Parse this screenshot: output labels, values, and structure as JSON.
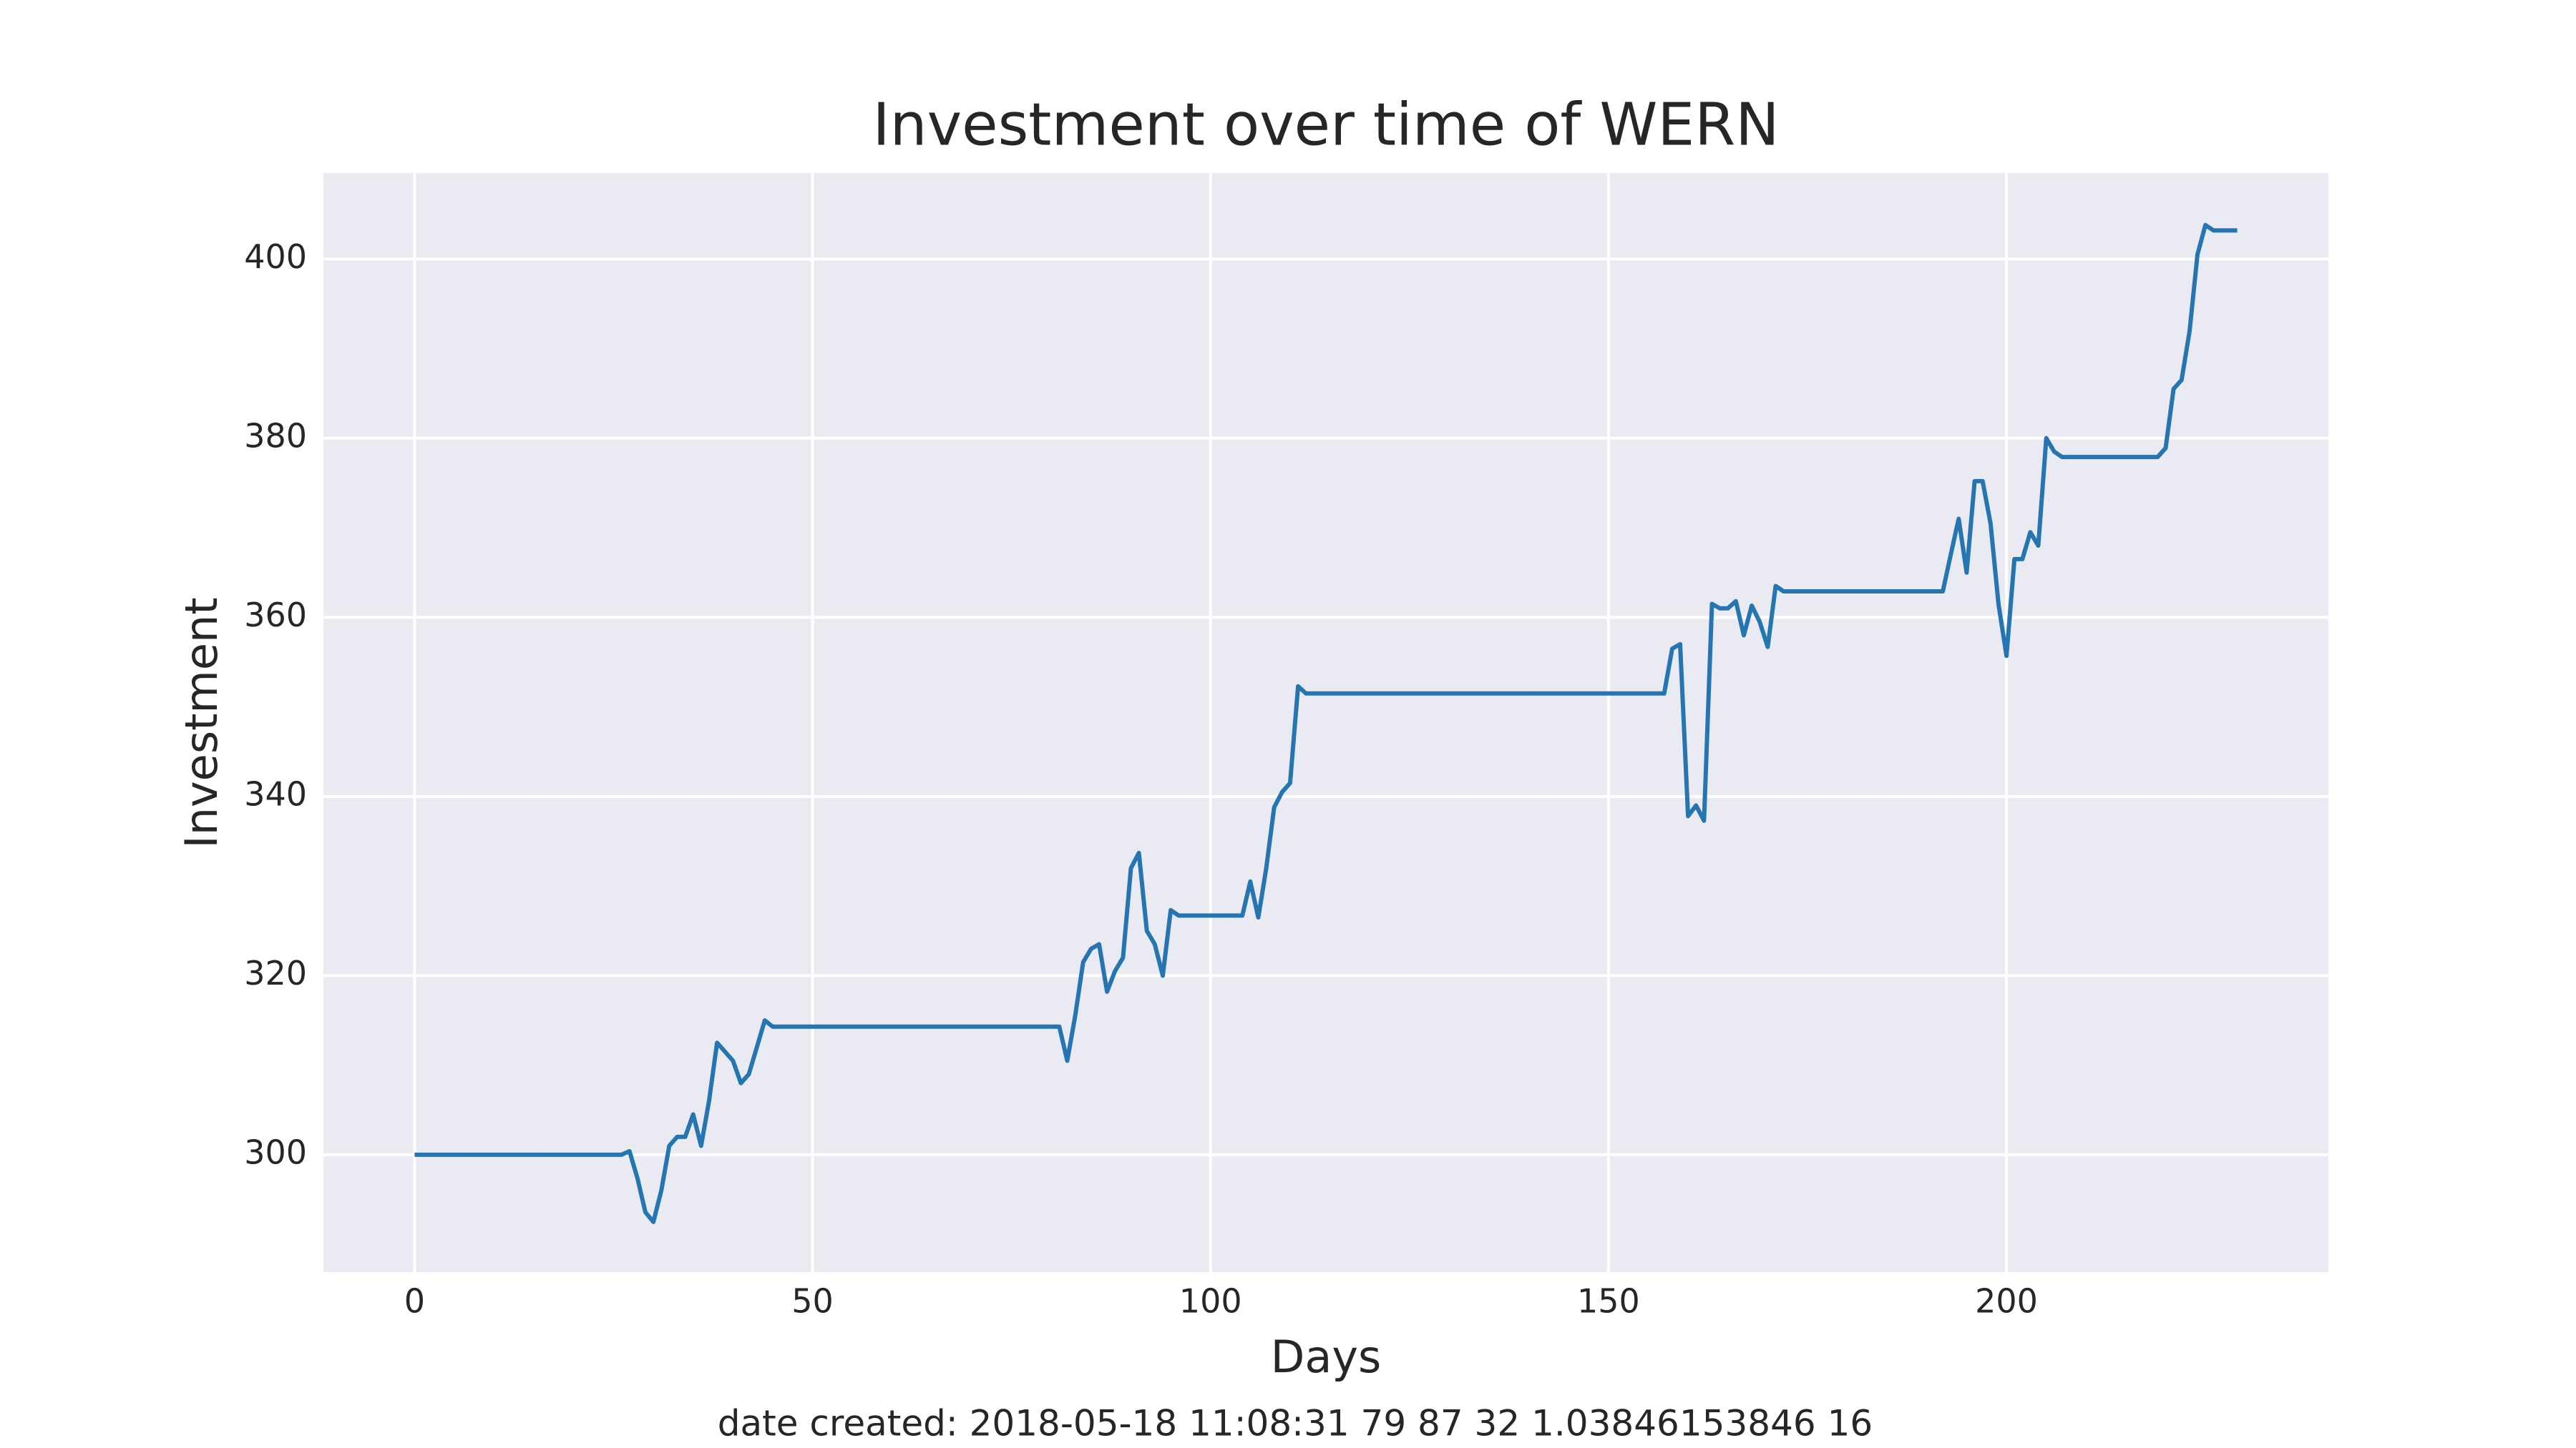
{
  "chart_data": {
    "type": "line",
    "title": "Investment over time of WERN",
    "xlabel": "Days",
    "ylabel": "Investment",
    "footer": "date created: 2018-05-18 11:08:31 79 87 32 1.03846153846 16",
    "x": [
      0,
      26,
      27,
      28,
      29,
      30,
      31,
      32,
      33,
      34,
      35,
      36,
      37,
      38,
      39,
      40,
      41,
      42,
      43,
      44,
      45,
      81,
      82,
      83,
      84,
      85,
      86,
      87,
      88,
      89,
      90,
      91,
      92,
      93,
      94,
      95,
      96,
      104,
      105,
      106,
      107,
      108,
      109,
      110,
      111,
      112,
      157,
      158,
      159,
      160,
      161,
      162,
      163,
      164,
      165,
      166,
      167,
      168,
      169,
      170,
      171,
      172,
      192,
      193,
      194,
      195,
      196,
      197,
      198,
      199,
      200,
      201,
      202,
      203,
      204,
      205,
      206,
      207,
      219,
      220,
      221,
      222,
      223,
      224,
      225,
      226,
      229
    ],
    "series": [
      {
        "name": "Investment",
        "color": "#2475b0",
        "values": [
          300,
          300,
          300.4,
          297.4,
          293.6,
          292.5,
          296,
          301,
          302,
          302,
          304.5,
          301,
          306,
          312.5,
          311.5,
          310.5,
          308,
          309,
          312,
          315,
          314.3,
          314.3,
          310.5,
          315.5,
          321.5,
          323,
          323.5,
          318.2,
          320.5,
          322,
          332,
          333.7,
          325,
          323.5,
          320,
          327.3,
          326.7,
          326.7,
          330.5,
          326.5,
          332,
          338.8,
          340.5,
          341.5,
          352.3,
          351.5,
          351.5,
          356.5,
          357,
          337.8,
          339,
          337.3,
          361.5,
          361,
          361,
          361.8,
          358,
          361.3,
          359.5,
          356.7,
          363.5,
          362.9,
          362.9,
          367,
          371,
          365,
          375.2,
          375.2,
          370.5,
          361.5,
          355.7,
          366.5,
          366.5,
          369.5,
          368,
          380,
          378.5,
          377.9,
          377.9,
          378.9,
          385.5,
          386.5,
          391.9,
          400.5,
          403.8,
          403.2,
          403.2
        ]
      }
    ],
    "xlim": [
      -11.45,
      240.45
    ],
    "ylim": [
      286.9,
      409.6
    ],
    "xticks": [
      0,
      50,
      100,
      150,
      200
    ],
    "yticks": [
      300,
      320,
      340,
      360,
      380,
      400
    ],
    "grid": true
  }
}
